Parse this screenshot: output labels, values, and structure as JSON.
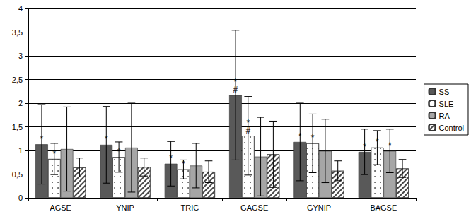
{
  "chart_data": {
    "type": "bar",
    "categories": [
      "AGSE",
      "YNIP",
      "TRIC",
      "GAGSE",
      "GYNIP",
      "BAGSE"
    ],
    "series": [
      {
        "name": "SS",
        "color": "#595959",
        "values": [
          1.13,
          1.12,
          0.72,
          2.17,
          1.18,
          0.97
        ],
        "errors": [
          0.84,
          0.81,
          0.47,
          1.37,
          0.82,
          0.48
        ],
        "annotations": [
          [
            "*"
          ],
          [
            "*"
          ],
          [
            "*"
          ],
          [
            "*",
            "#"
          ],
          [
            "*"
          ],
          [
            "*"
          ]
        ]
      },
      {
        "name": "SLE",
        "color": "#ffffff",
        "values": [
          0.82,
          0.86,
          0.6,
          1.31,
          1.15,
          1.06
        ],
        "errors": [
          0.33,
          0.32,
          0.2,
          0.83,
          0.62,
          0.36
        ],
        "annotations": [
          [
            "*"
          ],
          [
            "*"
          ],
          [
            "*"
          ],
          [
            "*",
            "#"
          ],
          [
            "*"
          ],
          [
            "*"
          ]
        ]
      },
      {
        "name": "RA",
        "color": "#a6a6a6",
        "values": [
          1.03,
          1.06,
          0.68,
          0.87,
          0.99,
          0.99
        ],
        "errors": [
          0.89,
          0.94,
          0.47,
          0.83,
          0.67,
          0.46
        ],
        "annotations": [
          null,
          null,
          null,
          null,
          null,
          [
            "*"
          ]
        ]
      },
      {
        "name": "Control",
        "color": "#ffffff",
        "values": [
          0.64,
          0.65,
          0.55,
          0.92,
          0.57,
          0.62
        ],
        "errors": [
          0.2,
          0.19,
          0.23,
          0.7,
          0.21,
          0.19
        ]
      }
    ],
    "ylim": [
      0,
      4
    ],
    "yticks": [
      0,
      {
        "value": 0.5,
        "label": "0,5"
      },
      1,
      {
        "value": 1.5,
        "label": "1,5"
      },
      2,
      {
        "value": 2.5,
        "label": "2,5"
      },
      3,
      {
        "value": 3.5,
        "label": "3,5"
      },
      4
    ],
    "grid": true,
    "legend": "right"
  }
}
